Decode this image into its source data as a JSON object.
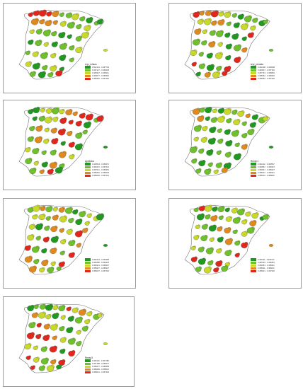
{
  "colors": {
    "dark_green": "#1f9a1f",
    "green": "#6fc12c",
    "yellow_green": "#c8d92a",
    "orange": "#e08a1e",
    "red": "#e3261c",
    "map_outline": "#6f6f6f",
    "panel_border": "#9a9a9a"
  },
  "panels": [
    {
      "legend_title": "repr_ichaos",
      "legend_items": [
        "0.502144 - 0.487719",
        "0.467147 - 0.466048",
        "0.465947 - 0.466011",
        "0.460077 - 0.458462",
        "0.458462 - 0.457440"
      ]
    },
    {
      "legend_title": "repr_privada",
      "legend_items": [
        "0.461098 - 0.460098",
        "0.460027 - 0.457152",
        "0.457151 - 0.460834",
        "0.458462 - 0.458462",
        "0.458462 - 0.457440"
      ]
    },
    {
      "legend_title": "Apellidos",
      "legend_items": [
        "0.460544 - 0.459472",
        "0.459472 - 0.457641",
        "0.457641 - 0.458451",
        "0.458451 - 0.458203",
        "0.458203 - 0.457441"
      ]
    },
    {
      "legend_title": "Recep1",
      "legend_items": [
        "0.461142 - 0.460567",
        "0.460567 - 0.459347",
        "0.459347 - 0.458427",
        "0.458427 - 0.458114",
        "0.458114 - 0.458046"
      ]
    },
    {
      "legend_title": "",
      "legend_items": [
        "0.460144 - 0.460458",
        "0.460458 - 0.459441",
        "0.459441 - 0.458427",
        "0.458427 - 0.458227",
        "0.458227 - 0.457440"
      ]
    },
    {
      "legend_title": "",
      "legend_items": [
        "0.460111 - 0.460122",
        "0.460122 - 0.459451",
        "0.459451 - 0.458411",
        "0.458411 - 0.458221",
        "0.458221 - 0.457440"
      ]
    },
    {
      "legend_title": "Recep3",
      "legend_items": [
        "0.460116 - 0.457188",
        "0.457188 - 0.458477",
        "0.458477 - 0.458459",
        "0.458459 - 0.458021",
        "0.458021 - 0.457440"
      ]
    }
  ]
}
